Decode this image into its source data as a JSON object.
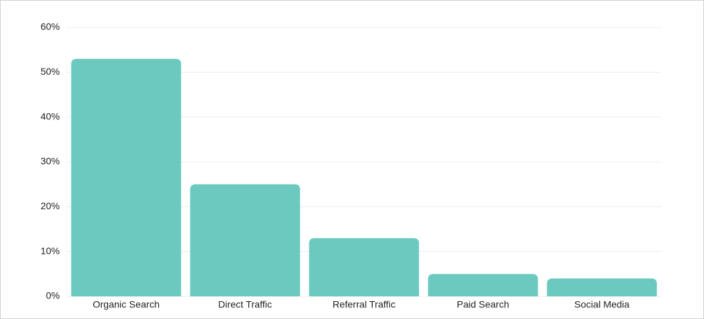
{
  "chart_data": {
    "type": "bar",
    "categories": [
      "Organic Search",
      "Direct Traffic",
      "Referral Traffic",
      "Paid Search",
      "Social Media"
    ],
    "values": [
      53,
      25,
      13,
      5,
      4
    ],
    "color": "#6cc9c0",
    "ylim": [
      0,
      60
    ],
    "yticks": [
      {
        "value": 0,
        "label": "0%"
      },
      {
        "value": 10,
        "label": "10%"
      },
      {
        "value": 20,
        "label": "20%"
      },
      {
        "value": 30,
        "label": "30%"
      },
      {
        "value": 40,
        "label": "40%"
      },
      {
        "value": 50,
        "label": "50%"
      },
      {
        "value": 60,
        "label": "60%"
      }
    ],
    "grid": true
  }
}
